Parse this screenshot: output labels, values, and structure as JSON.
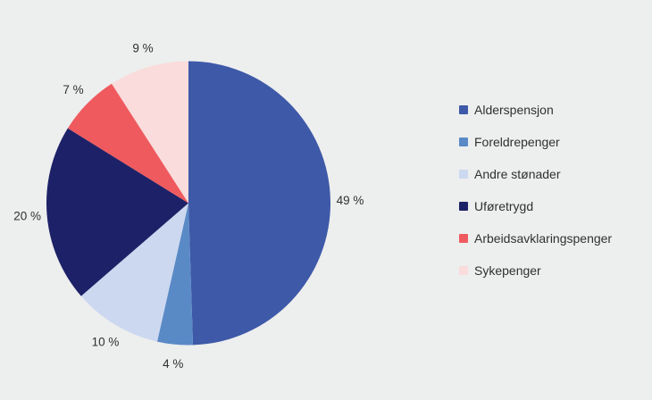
{
  "background_color": "#edeeee",
  "text_color": "#303030",
  "chart_data": {
    "type": "pie",
    "title": "",
    "legend_position": "right",
    "start_angle_deg": 0,
    "direction": "clockwise",
    "label_format": "{value} %",
    "slices": [
      {
        "label": "Alderspensjon",
        "value": 49,
        "display": "49 %",
        "color": "#3e59a8"
      },
      {
        "label": "Foreldrepenger",
        "value": 4,
        "display": "4 %",
        "color": "#5a8ac6"
      },
      {
        "label": "Andre stønader",
        "value": 10,
        "display": "10 %",
        "color": "#ccd8f0"
      },
      {
        "label": "Uføretrygd",
        "value": 20,
        "display": "20 %",
        "color": "#1d2167"
      },
      {
        "label": "Arbeidsavklaringspenger",
        "value": 7,
        "display": "7 %",
        "color": "#ef5a5f"
      },
      {
        "label": "Sykepenger",
        "value": 9,
        "display": "9 %",
        "color": "#f9dcdb"
      }
    ]
  }
}
